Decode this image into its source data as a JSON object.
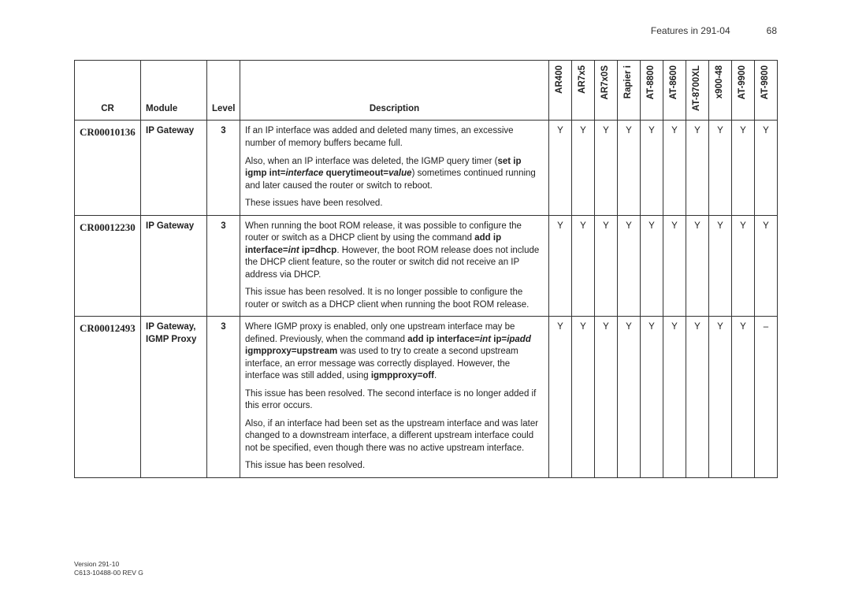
{
  "page_header": {
    "title": "Features in 291-04",
    "number": "68"
  },
  "footer": {
    "line1": "Version 291-10",
    "line2": "C613-10488-00 REV G"
  },
  "columns": {
    "cr": "CR",
    "module": "Module",
    "level": "Level",
    "description": "Description",
    "platforms": [
      "AR400",
      "AR7x5",
      "AR7x0S",
      "Rapier i",
      "AT-8800",
      "AT-8600",
      "AT-8700XL",
      "x900-48",
      "AT-9900",
      "AT-9800"
    ]
  },
  "rows": [
    {
      "cr": "CR00010136",
      "module": "IP Gateway",
      "level": "3",
      "platforms": [
        "Y",
        "Y",
        "Y",
        "Y",
        "Y",
        "Y",
        "Y",
        "Y",
        "Y",
        "Y"
      ]
    },
    {
      "cr": "CR00012230",
      "module": "IP Gateway",
      "level": "3",
      "platforms": [
        "Y",
        "Y",
        "Y",
        "Y",
        "Y",
        "Y",
        "Y",
        "Y",
        "Y",
        "Y"
      ]
    },
    {
      "cr": "CR00012493",
      "module": "IP Gateway, IGMP Proxy",
      "level": "3",
      "platforms": [
        "Y",
        "Y",
        "Y",
        "Y",
        "Y",
        "Y",
        "Y",
        "Y",
        "Y",
        "–"
      ]
    }
  ],
  "style": {
    "border_color": "#333333",
    "font_size_body": 11.5,
    "font_size_cr": 13,
    "font_size_footer": 8.5,
    "bg": "#ffffff"
  }
}
